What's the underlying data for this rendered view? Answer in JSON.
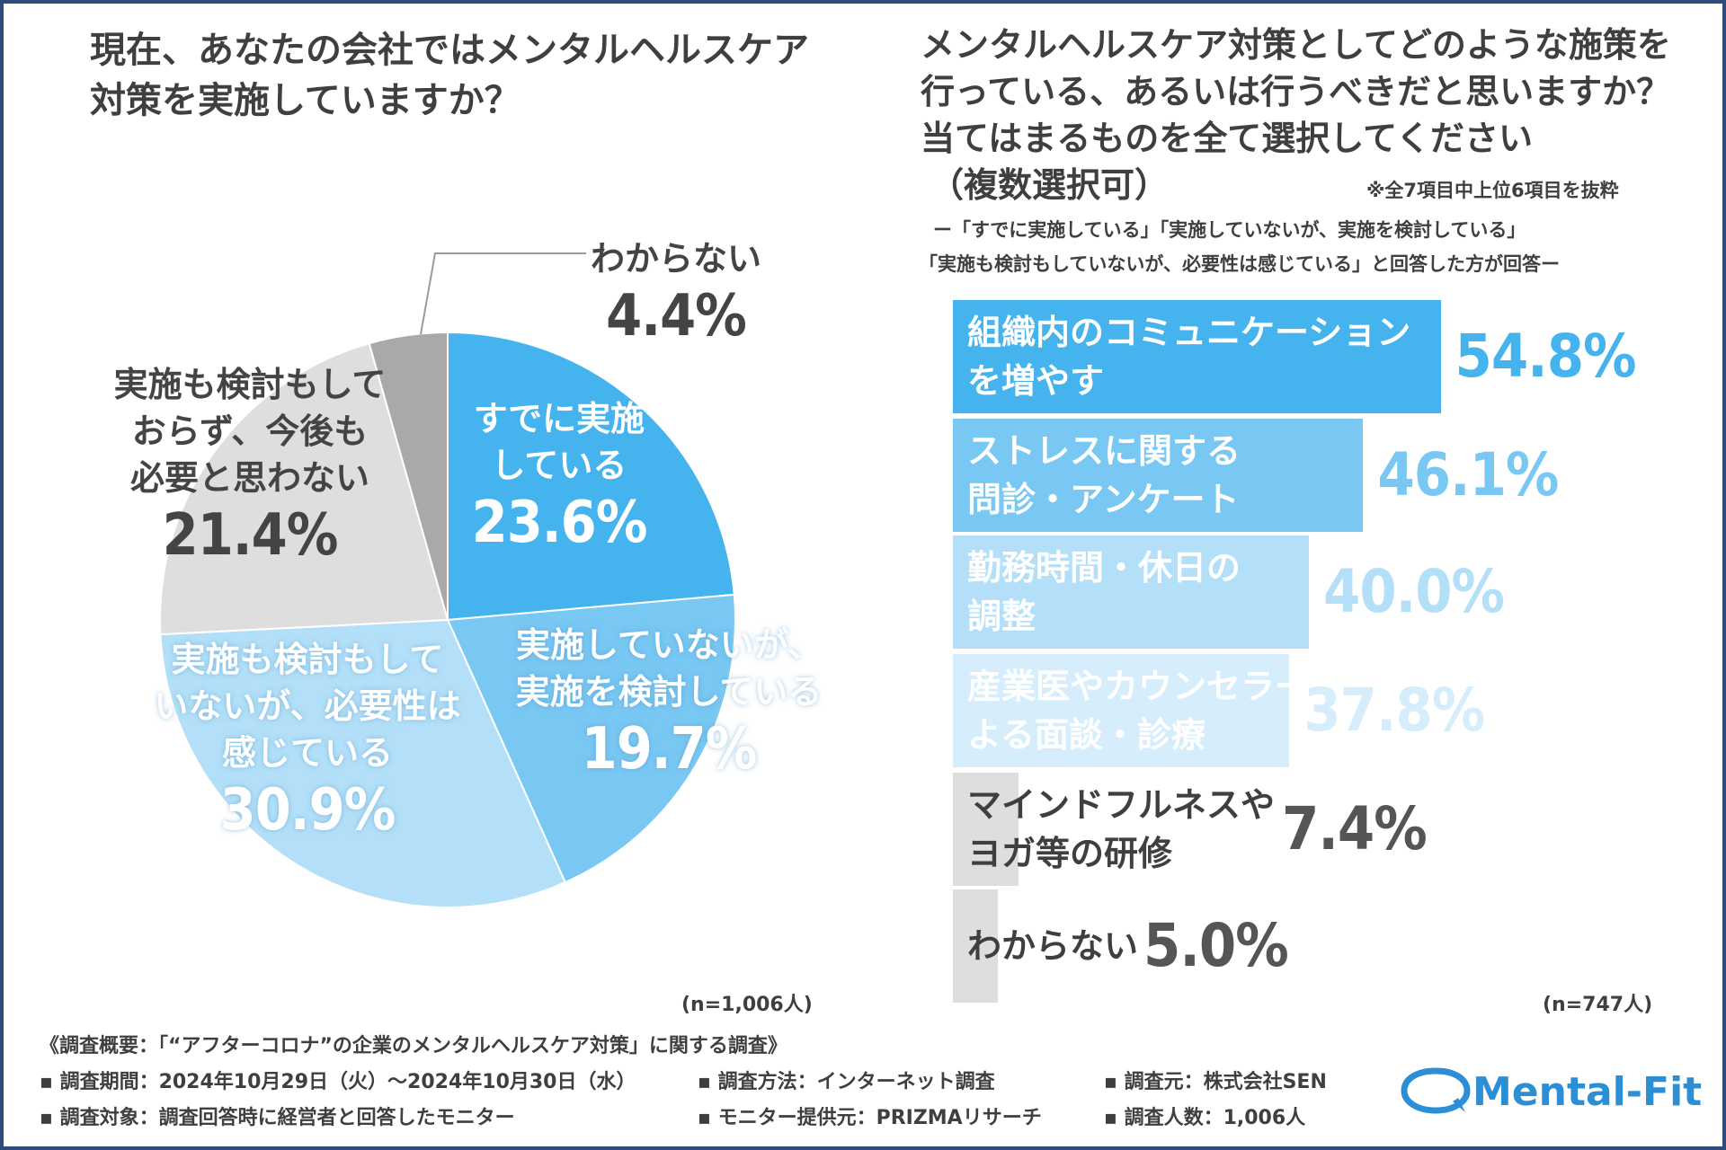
{
  "left_question": {
    "line1": "現在、あなたの会社ではメンタルヘルスケア",
    "line2": "対策を実施していますか？"
  },
  "right_question": {
    "line1": "メンタルヘルスケア対策としてどのような施策を",
    "line2": "行っている、あるいは行うべきだと思いますか？",
    "line3": "当てはまるものを全て選択してください",
    "line4": "（複数選択可）",
    "note": "※全7項目中上位6項目を抜粋",
    "sub1": "ー「すでに実施している」「実施していないが、実施を検討している」",
    "sub2": "「実施も検討もしていないが、必要性は感じている」と回答した方が回答ー"
  },
  "chart_data": [
    {
      "type": "pie",
      "title": "現在、あなたの会社ではメンタルヘルスケア対策を実施していますか？",
      "n": "(n=1,006人)",
      "slices": [
        {
          "label_lines": [
            "すでに実施",
            "している"
          ],
          "value": 23.6,
          "value_text": "23.6%",
          "color": "#45b3ee"
        },
        {
          "label_lines": [
            "実施していないが、",
            "実施を検討している"
          ],
          "value": 19.7,
          "value_text": "19.7%",
          "color": "#79c7f3"
        },
        {
          "label_lines": [
            "実施も検討もして",
            "いないが、必要性は",
            "感じている"
          ],
          "value": 30.9,
          "value_text": "30.9%",
          "color": "#b3e0f8"
        },
        {
          "label_lines": [
            "実施も検討もして",
            "おらず、今後も",
            "必要と思わない"
          ],
          "value": 21.4,
          "value_text": "21.4%",
          "color": "#dedede"
        },
        {
          "label_lines": [
            "わからない"
          ],
          "value": 4.4,
          "value_text": "4.4%",
          "color": "#a9a9a9"
        }
      ]
    },
    {
      "type": "bar",
      "orientation": "horizontal",
      "title": "メンタルヘルスケア対策としてどのような施策を行っている、あるいは行うべきだと思いますか？",
      "n": "(n=747人)",
      "xlim": [
        0,
        100
      ],
      "bars": [
        {
          "label_lines": [
            "組織内のコミュニケーション",
            "を増やす"
          ],
          "value": 54.8,
          "value_text": "54.8%",
          "color": "#45b3ee",
          "label_color": "#ffffff",
          "value_color": "#45b3ee"
        },
        {
          "label_lines": [
            "ストレスに関する",
            "問診・アンケート"
          ],
          "value": 46.1,
          "value_text": "46.1%",
          "color": "#79c7f3",
          "label_color": "#ffffff",
          "value_color": "#79c7f3"
        },
        {
          "label_lines": [
            "勤務時間・休日の",
            "調整"
          ],
          "value": 40.0,
          "value_text": "40.0%",
          "color": "#b3e0f8",
          "label_color": "#ffffff",
          "value_color": "#b3e0f8"
        },
        {
          "label_lines": [
            "産業医やカウンセラーに",
            "よる面談・診療"
          ],
          "value": 37.8,
          "value_text": "37.8%",
          "color": "#d6eefb",
          "label_color": "#ffffff",
          "value_color": "#d6eefb"
        },
        {
          "label_lines": [
            "マインドフルネスや",
            "ヨガ等の研修"
          ],
          "value": 7.4,
          "value_text": "7.4%",
          "color": "#dedede",
          "label_color": "#3f3f3f",
          "value_color": "#555555"
        },
        {
          "label_lines": [
            "わからない"
          ],
          "value": 5.0,
          "value_text": "5.0%",
          "color": "#dedede",
          "label_color": "#3f3f3f",
          "value_color": "#555555"
        }
      ]
    }
  ],
  "footer": {
    "heading": "《調査概要：「“アフターコロナ”の企業のメンタルヘルスケア対策」に関する調査》",
    "period": "▪ 調査期間：2024年10月29日（火）～2024年10月30日（水）",
    "method": "▪ 調査方法：インターネット調査",
    "source": "▪ 調査元：株式会社SEN",
    "target": "▪ 調査対象：調査回答時に経営者と回答したモニター",
    "provider": "▪ モニター提供元：PRIZMAリサーチ",
    "count": "▪ 調査人数：1,006人",
    "logo": "Mental-Fit"
  }
}
